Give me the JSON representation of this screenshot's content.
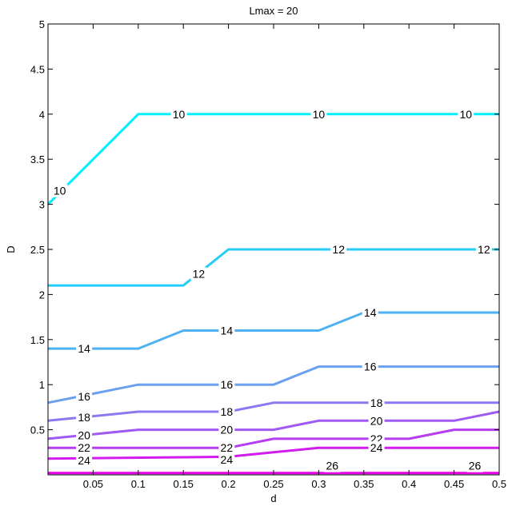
{
  "chart_data": {
    "type": "contour",
    "title": "Lmax = 20",
    "xlabel": "d",
    "ylabel": "D",
    "xlim": [
      0,
      0.5
    ],
    "ylim": [
      0,
      5
    ],
    "x_ticks": [
      "0.05",
      "0.1",
      "0.15",
      "0.2",
      "0.25",
      "0.3",
      "0.35",
      "0.4",
      "0.45",
      "0.5"
    ],
    "y_ticks": [
      "0.5",
      "1",
      "1.5",
      "2",
      "2.5",
      "3",
      "3.5",
      "4",
      "4.5",
      "5"
    ],
    "grid": false,
    "contours": [
      {
        "level": "10",
        "color": "#00f0ff",
        "points": [
          [
            0,
            3.0
          ],
          [
            0.1,
            4.0
          ],
          [
            0.5,
            4.0
          ]
        ],
        "labels": [
          [
            0.013,
            3.15
          ],
          [
            0.145,
            4.0
          ],
          [
            0.3,
            4.0
          ],
          [
            0.463,
            4.0
          ]
        ]
      },
      {
        "level": "12",
        "color": "#26ccf5",
        "points": [
          [
            0,
            2.1
          ],
          [
            0.15,
            2.1
          ],
          [
            0.2,
            2.5
          ],
          [
            0.5,
            2.5
          ]
        ],
        "labels": [
          [
            0.167,
            2.23
          ],
          [
            0.322,
            2.5
          ],
          [
            0.483,
            2.5
          ]
        ]
      },
      {
        "level": "14",
        "color": "#4fb1f1",
        "points": [
          [
            0,
            1.4
          ],
          [
            0.1,
            1.4
          ],
          [
            0.15,
            1.6
          ],
          [
            0.3,
            1.6
          ],
          [
            0.35,
            1.8
          ],
          [
            0.5,
            1.8
          ]
        ],
        "labels": [
          [
            0.04,
            1.4
          ],
          [
            0.198,
            1.6
          ],
          [
            0.357,
            1.8
          ]
        ]
      },
      {
        "level": "16",
        "color": "#6b9ff0",
        "points": [
          [
            0,
            0.8
          ],
          [
            0.1,
            1.0
          ],
          [
            0.25,
            1.0
          ],
          [
            0.3,
            1.2
          ],
          [
            0.5,
            1.2
          ]
        ],
        "labels": [
          [
            0.04,
            0.87
          ],
          [
            0.198,
            1.0
          ],
          [
            0.357,
            1.2
          ]
        ]
      },
      {
        "level": "18",
        "color": "#8a7af2",
        "points": [
          [
            0,
            0.6
          ],
          [
            0.1,
            0.7
          ],
          [
            0.2,
            0.7
          ],
          [
            0.25,
            0.8
          ],
          [
            0.5,
            0.8
          ]
        ],
        "labels": [
          [
            0.04,
            0.64
          ],
          [
            0.198,
            0.7
          ],
          [
            0.364,
            0.8
          ]
        ]
      },
      {
        "level": "20",
        "color": "#a05af2",
        "points": [
          [
            0,
            0.4
          ],
          [
            0.1,
            0.5
          ],
          [
            0.25,
            0.5
          ],
          [
            0.3,
            0.6
          ],
          [
            0.45,
            0.6
          ],
          [
            0.5,
            0.7
          ]
        ],
        "labels": [
          [
            0.04,
            0.44
          ],
          [
            0.198,
            0.5
          ],
          [
            0.364,
            0.6
          ]
        ]
      },
      {
        "level": "22",
        "color": "#b73ef0",
        "points": [
          [
            0,
            0.3
          ],
          [
            0.2,
            0.3
          ],
          [
            0.25,
            0.4
          ],
          [
            0.4,
            0.4
          ],
          [
            0.45,
            0.5
          ],
          [
            0.5,
            0.5
          ]
        ],
        "labels": [
          [
            0.04,
            0.3
          ],
          [
            0.198,
            0.3
          ],
          [
            0.364,
            0.4
          ]
        ]
      },
      {
        "level": "24",
        "color": "#d21ced",
        "points": [
          [
            0,
            0.18
          ],
          [
            0.2,
            0.2
          ],
          [
            0.25,
            0.25
          ],
          [
            0.3,
            0.3
          ],
          [
            0.5,
            0.3
          ]
        ],
        "labels": [
          [
            0.04,
            0.16
          ],
          [
            0.198,
            0.17
          ],
          [
            0.364,
            0.3
          ]
        ]
      },
      {
        "level": "26",
        "color": "#e600e6",
        "points": [
          [
            0,
            0.02
          ],
          [
            0.5,
            0.02
          ]
        ],
        "labels": [
          [
            0.315,
            0.1
          ],
          [
            0.473,
            0.1
          ]
        ]
      }
    ]
  }
}
